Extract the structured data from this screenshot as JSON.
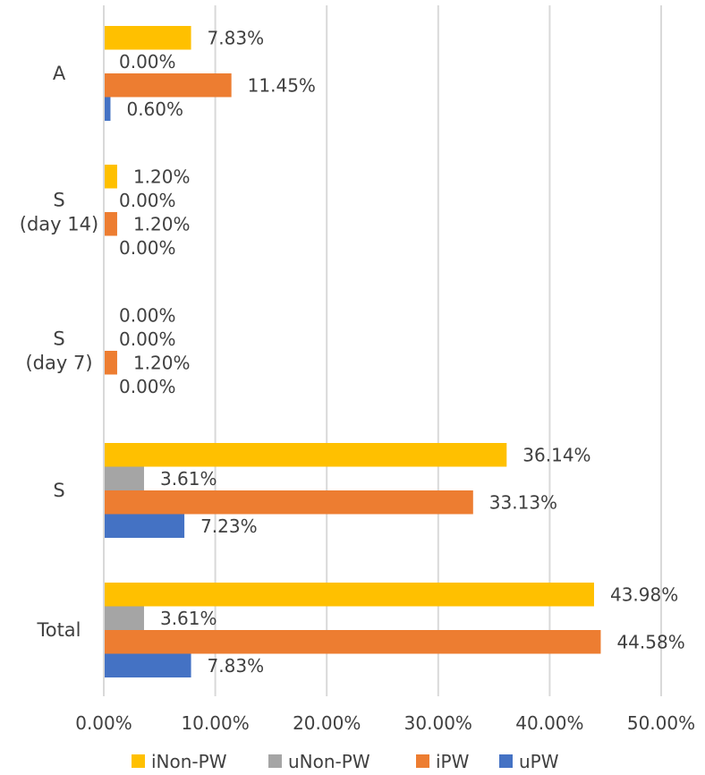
{
  "chart_data": {
    "type": "bar",
    "orientation": "horizontal",
    "categories": [
      [
        "A"
      ],
      [
        "S",
        "(day 14)"
      ],
      [
        "S",
        "(day 7)"
      ],
      [
        "S"
      ],
      [
        "Total"
      ]
    ],
    "xlim": [
      0,
      50
    ],
    "x_ticks": [
      0,
      10,
      20,
      30,
      40,
      50
    ],
    "x_tick_labels": [
      "0.00%",
      "10.00%",
      "20.00%",
      "30.00%",
      "40.00%",
      "50.00%"
    ],
    "grid": true,
    "legend_position": "bottom",
    "series": [
      {
        "name": "iNon-PW",
        "color": "#FFC000",
        "values": [
          7.83,
          1.2,
          0.0,
          36.14,
          43.98
        ],
        "labels": [
          "7.83%",
          "1.20%",
          "0.00%",
          "36.14%",
          "43.98%"
        ]
      },
      {
        "name": "uNon-PW",
        "color": "#A5A5A5",
        "values": [
          0.0,
          0.0,
          0.0,
          3.61,
          3.61
        ],
        "labels": [
          "0.00%",
          "0.00%",
          "0.00%",
          "3.61%",
          "3.61%"
        ]
      },
      {
        "name": "iPW",
        "color": "#ED7D31",
        "values": [
          11.45,
          1.2,
          1.2,
          33.13,
          44.58
        ],
        "labels": [
          "11.45%",
          "1.20%",
          "1.20%",
          "33.13%",
          "44.58%"
        ]
      },
      {
        "name": "uPW",
        "color": "#4472C4",
        "values": [
          0.6,
          0.0,
          0.0,
          7.23,
          7.83
        ],
        "labels": [
          "0.60%",
          "0.00%",
          "0.00%",
          "7.23%",
          "7.83%"
        ]
      }
    ]
  }
}
